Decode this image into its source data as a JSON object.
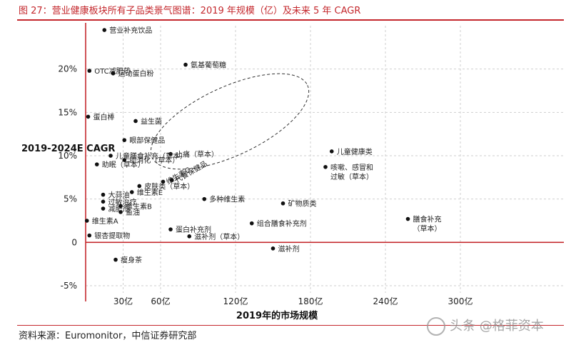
{
  "figure_title": "图 27：营业健康板块所有子品类景气图谱：2019 年规模（亿）及未来 5 年 CAGR",
  "source": "资料来源：Euromonitor，中信证券研究部",
  "watermark": "头条 @格菲资本",
  "colors": {
    "accent": "#c4282d",
    "axis": "#c4282d",
    "grid": "#cfcfcf",
    "point": "#111111"
  },
  "chart_data": {
    "type": "scatter",
    "xlabel": "2019年的市场规模",
    "ylabel": "2019-2024E CAGR",
    "xlim": [
      0,
      320
    ],
    "ylim": [
      -5,
      25
    ],
    "x_ticks": [
      30,
      60,
      120,
      180,
      240,
      300
    ],
    "x_tick_labels": [
      "30亿",
      "60亿",
      "120亿",
      "180亿",
      "240亿",
      "300亿"
    ],
    "y_ticks": [
      -5,
      0,
      5,
      10,
      15,
      20
    ],
    "y_tick_labels": [
      "-5%",
      "0",
      "5%",
      "10%",
      "15%",
      "20%"
    ],
    "grid": true,
    "highlight_ellipse_note": "ellipse around 益生菌, 眼部保健品, 氨基葡萄糖",
    "points": [
      {
        "label": "营业补充饮品",
        "x": 15,
        "y": 24.5
      },
      {
        "label": "OTC减肥药",
        "x": 3,
        "y": 19.8
      },
      {
        "label": "运动蛋白粉",
        "x": 22,
        "y": 19.5
      },
      {
        "label": "氨基葡萄糖",
        "x": 80,
        "y": 20.5
      },
      {
        "label": "蛋白棒",
        "x": 2,
        "y": 14.5
      },
      {
        "label": "益生菌",
        "x": 40,
        "y": 14.0
      },
      {
        "label": "眼部保健品",
        "x": 31,
        "y": 11.8
      },
      {
        "label": "止痛（草本）",
        "x": 68,
        "y": 10.2
      },
      {
        "label": "儿童膳食补充（草本）",
        "x": 20,
        "y": 10.0
      },
      {
        "label": "助消化（草本）",
        "x": 31,
        "y": 9.5
      },
      {
        "label": "助眠（草本）",
        "x": 9,
        "y": 9.0
      },
      {
        "label": "维生素C",
        "x": 62,
        "y": 7.0
      },
      {
        "label": "代餐保健品",
        "x": 69,
        "y": 7.2
      },
      {
        "label": "皮肤类（草本）",
        "x": 43,
        "y": 6.5
      },
      {
        "label": "维生素E",
        "x": 37,
        "y": 5.8
      },
      {
        "label": "大蒜油",
        "x": 14,
        "y": 5.5
      },
      {
        "label": "过敏治疗",
        "x": 14,
        "y": 4.7
      },
      {
        "label": "减肥剂",
        "x": 14,
        "y": 3.9
      },
      {
        "label": "维生素B",
        "x": 28,
        "y": 4.2
      },
      {
        "label": "鱼油",
        "x": 28,
        "y": 3.5
      },
      {
        "label": "维生素A",
        "x": 1,
        "y": 2.5
      },
      {
        "label": "银杏提取物",
        "x": 3,
        "y": 0.8
      },
      {
        "label": "蛋白补充剂",
        "x": 68,
        "y": 1.5
      },
      {
        "label": "多种维生素",
        "x": 95,
        "y": 5.0
      },
      {
        "label": "滋补剂（草本）",
        "x": 83,
        "y": 0.7
      },
      {
        "label": "组合膳食补充剂",
        "x": 133,
        "y": 2.2
      },
      {
        "label": "矿物质类",
        "x": 158,
        "y": 4.5
      },
      {
        "label": "滋补剂",
        "x": 150,
        "y": -0.7
      },
      {
        "label": "瘦身茶",
        "x": 24,
        "y": -2.0
      },
      {
        "label": "儿童健康类",
        "x": 197,
        "y": 10.5
      },
      {
        "label": "咳嗽、感冒和过敏（草本）",
        "x": 192,
        "y": 8.7
      },
      {
        "label": "膳食补充（草本）",
        "x": 258,
        "y": 2.7
      }
    ]
  }
}
